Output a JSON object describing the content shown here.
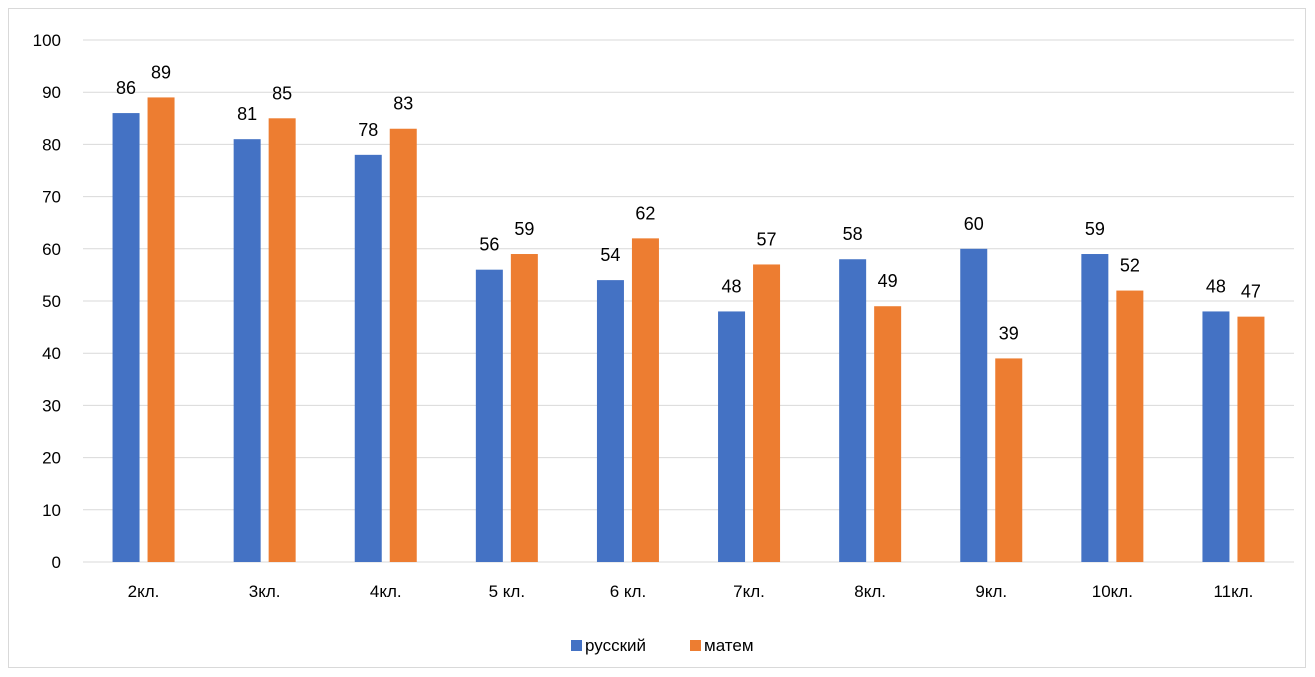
{
  "chart_data": {
    "type": "bar",
    "title": "",
    "xlabel": "",
    "ylabel": "",
    "categories": [
      "2кл.",
      "3кл.",
      "4кл.",
      "5 кл.",
      "6 кл.",
      "7кл.",
      "8кл.",
      "9кл.",
      "10кл.",
      "11кл."
    ],
    "series": [
      {
        "name": "русский",
        "color": "#4472C4",
        "values": [
          86,
          81,
          78,
          56,
          54,
          48,
          58,
          60,
          59,
          48
        ]
      },
      {
        "name": "матем",
        "color": "#ED7D31",
        "values": [
          89,
          85,
          83,
          59,
          62,
          57,
          49,
          39,
          52,
          47
        ]
      }
    ],
    "ylim": [
      0,
      100
    ],
    "yticks": [
      0,
      10,
      20,
      30,
      40,
      50,
      60,
      70,
      80,
      90,
      100
    ],
    "grid": true,
    "data_labels": true,
    "legend_position": "bottom",
    "gridline_color": "#d9d9d9"
  }
}
